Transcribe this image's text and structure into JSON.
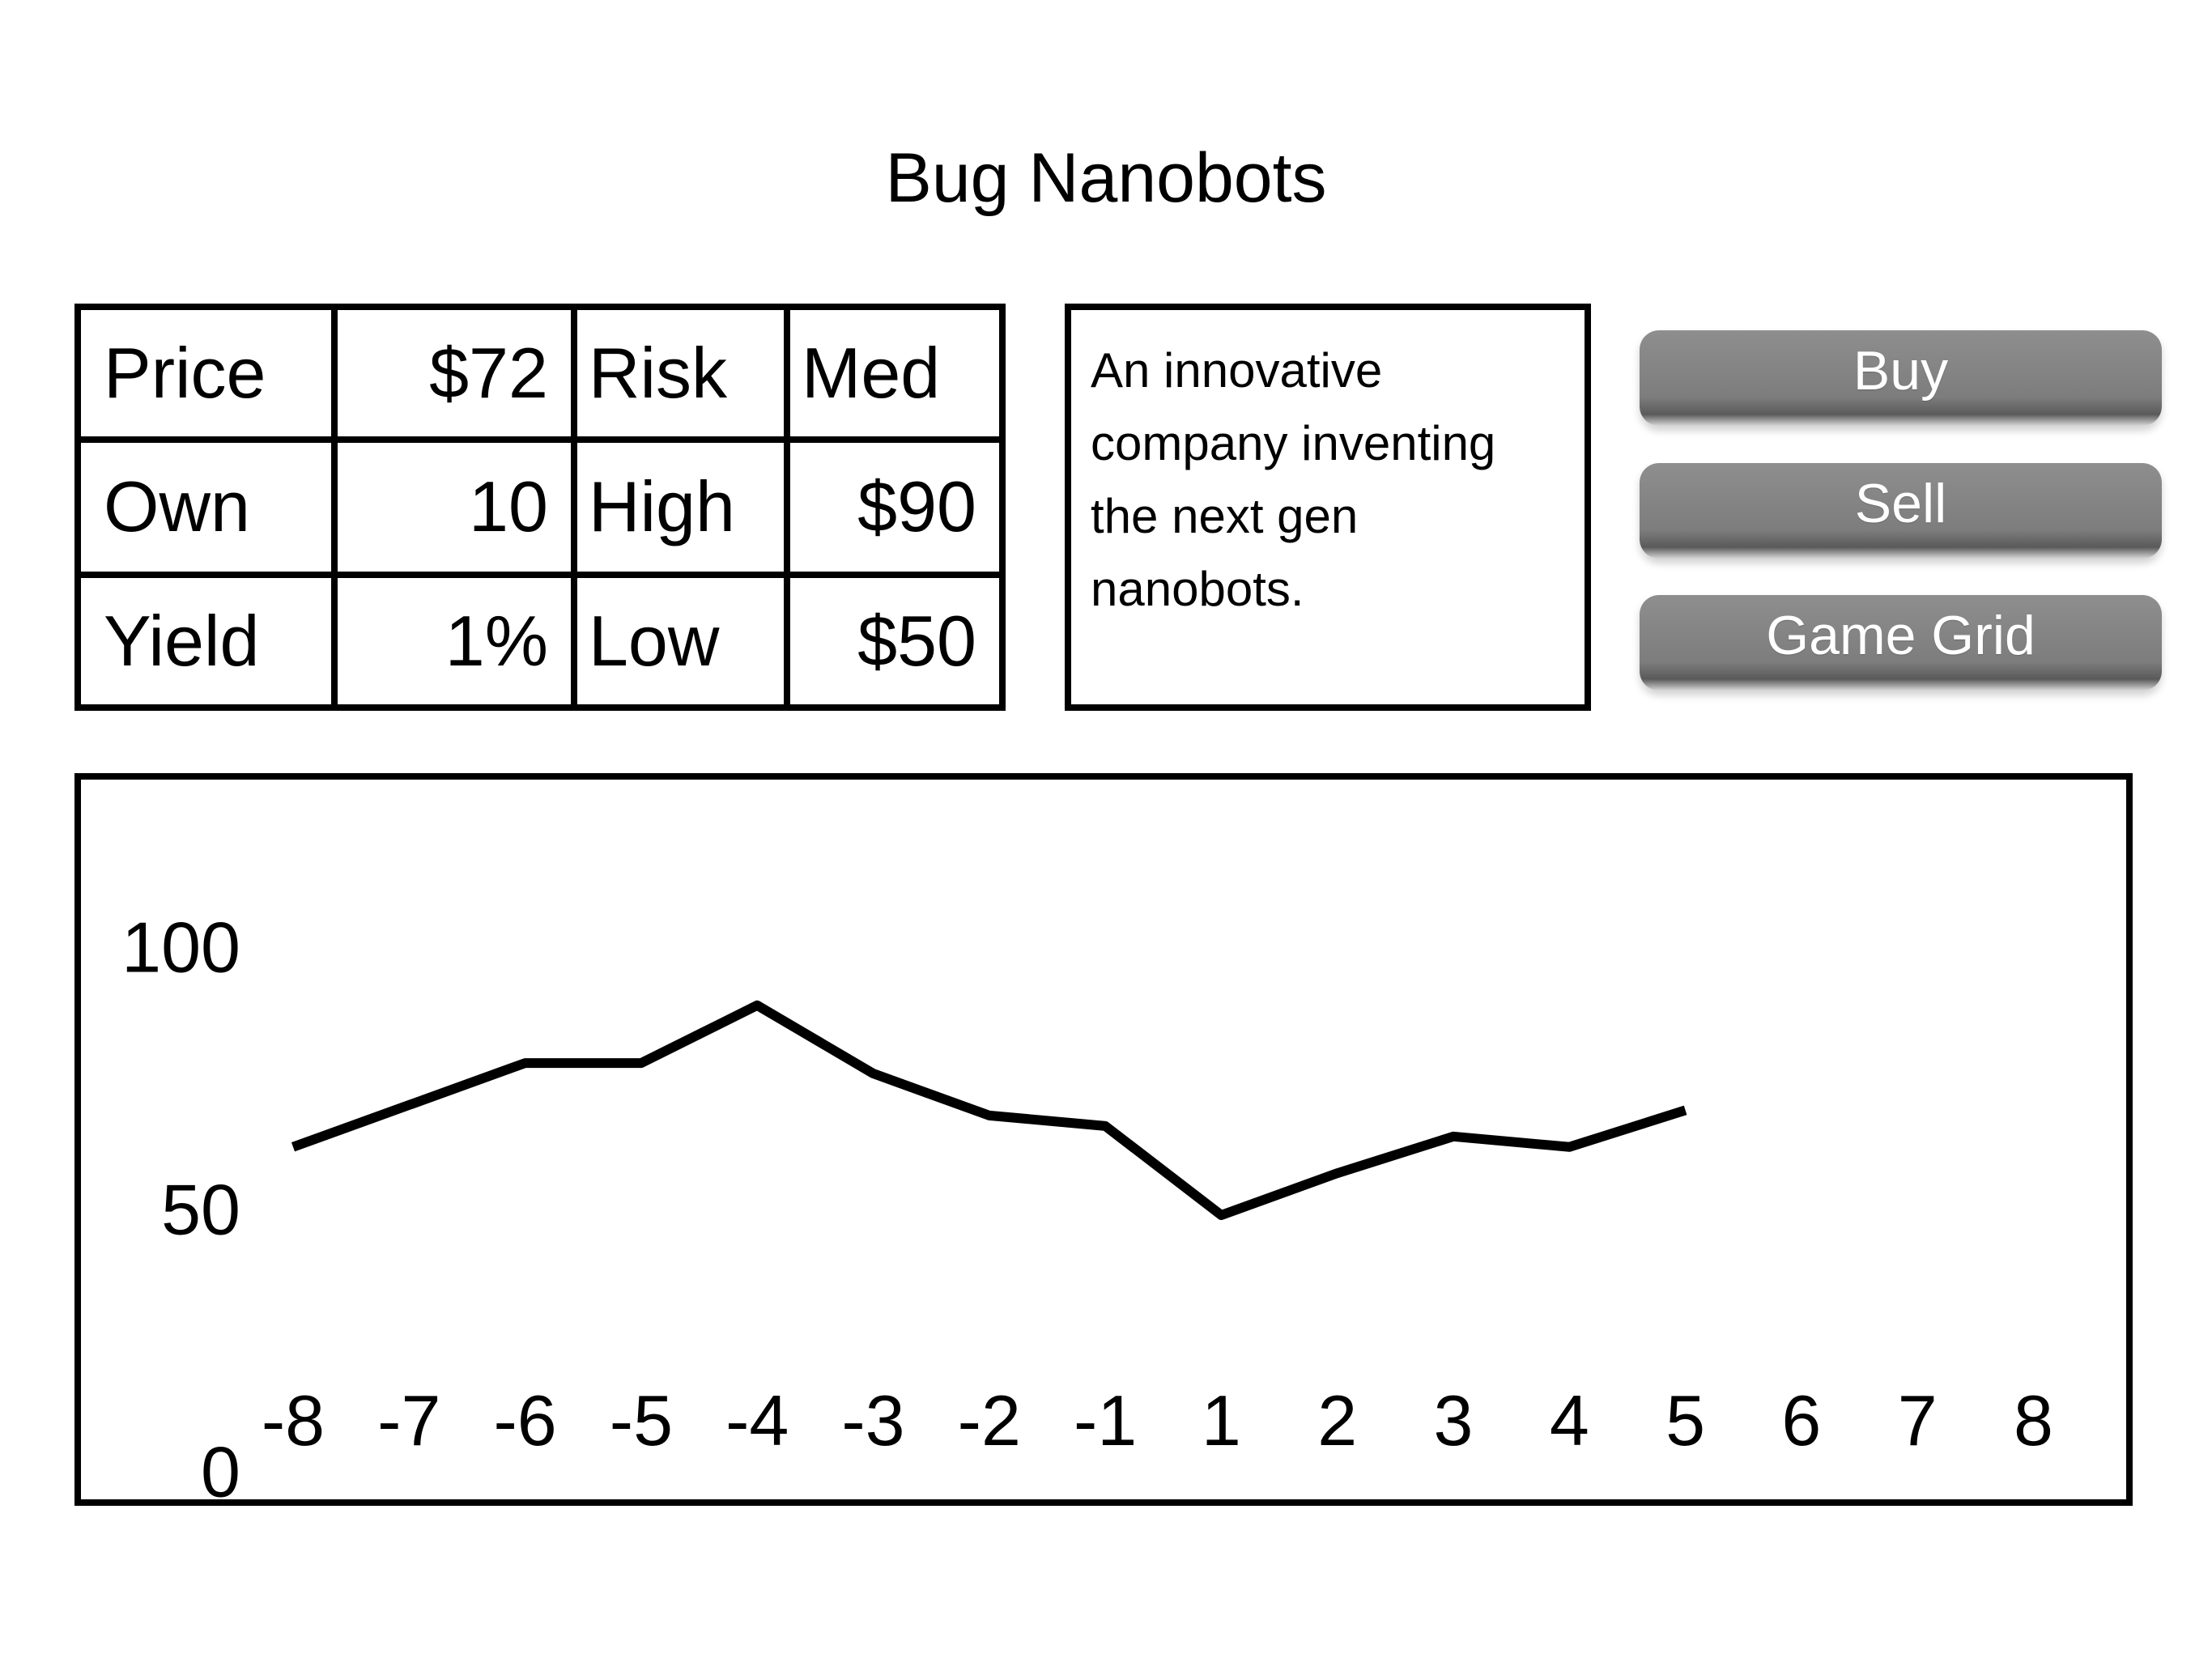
{
  "title": "Bug Nanobots",
  "stats": {
    "rows": [
      {
        "label1": "Price",
        "value1": "$72",
        "label2": "Risk",
        "value2": "Med"
      },
      {
        "label1": "Own",
        "value1": "10",
        "label2": "High",
        "value2": "$90"
      },
      {
        "label1": "Yield",
        "value1": "1%",
        "label2": "Low",
        "value2": "$50"
      }
    ]
  },
  "description": "An innovative company inventing the next gen nanobots.",
  "buttons": {
    "buy": "Buy",
    "sell": "Sell",
    "game_grid": "Game Grid"
  },
  "chart_data": {
    "type": "line",
    "title": "",
    "xlabel": "",
    "ylabel": "",
    "x_ticks": [
      "-8",
      "-7",
      "-6",
      "-5",
      "-4",
      "-3",
      "-2",
      "-1",
      "1",
      "2",
      "3",
      "4",
      "5",
      "6",
      "7",
      "8"
    ],
    "y_ticks": [
      "0",
      "50",
      "100"
    ],
    "ylim": [
      0,
      100
    ],
    "grid": false,
    "series": [
      {
        "x": [
          "-8",
          "-7",
          "-6",
          "-5",
          "-4",
          "-3",
          "-2",
          "-1",
          "1",
          "2",
          "3",
          "4",
          "5"
        ],
        "values": [
          63,
          71,
          79,
          79,
          90,
          77,
          69,
          67,
          50,
          58,
          65,
          63,
          70
        ]
      }
    ]
  }
}
